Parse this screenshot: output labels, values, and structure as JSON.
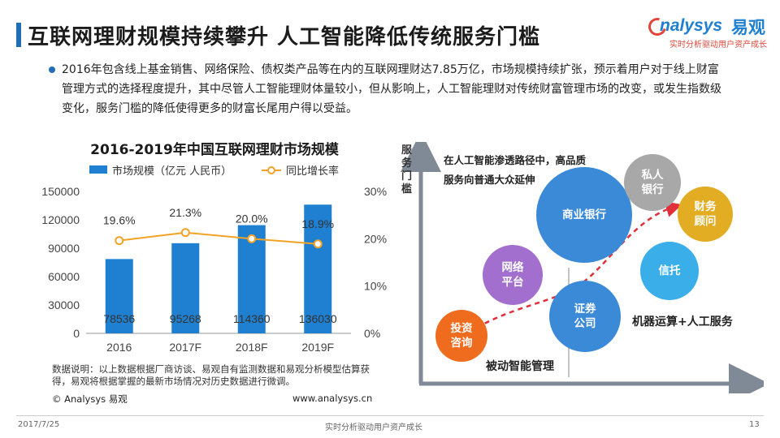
{
  "header": {
    "title": "互联网理财规模持续攀升   人工智能降低传统服务门槛",
    "logo_en": "nalysys",
    "logo_cn": "易观",
    "logo_sub": "实时分析驱动用户资产成长"
  },
  "intro": {
    "paragraph": "2016年包含线上基金销售、网络保险、债权类产品等在内的互联网理财达7.85万亿，市场规模持续扩张，预示着用户对于线上财富管理方式的选择程度提升，其中尽管人工智能理财体量较小，但从影响上，人工智能理财对传统财富管理市场的改变，或发生指数级变化，服务门槛的降低使得更多的财富长尾用户得以受益。"
  },
  "chart_data": {
    "type": "bar",
    "title": "2016-2019年中国互联网理财市场规模",
    "categories": [
      "2016",
      "2017F",
      "2018F",
      "2019F"
    ],
    "series": [
      {
        "name": "市场规模（亿元 人民币）",
        "type": "bar",
        "axis": "left",
        "values": [
          78536,
          95268,
          114360,
          136030
        ],
        "color": "#1f7fd0"
      },
      {
        "name": "同比增长率",
        "type": "line",
        "axis": "right",
        "values": [
          19.6,
          21.3,
          20.0,
          18.9
        ],
        "labels": [
          "19.6%",
          "21.3%",
          "20.0%",
          "18.9%"
        ],
        "color": "#f2a327"
      }
    ],
    "y_left": {
      "min": 0,
      "max": 150000,
      "ticks": [
        "0",
        "30000",
        "60000",
        "90000",
        "120000",
        "150000"
      ]
    },
    "y_right": {
      "min": 0,
      "max": 30,
      "ticks": [
        "0%",
        "10%",
        "20%",
        "30%"
      ]
    },
    "grid": false,
    "legend": "top"
  },
  "chart_footer": {
    "note": "数据说明：以上数据根据厂商访谈、易观自有监测数据和易观分析模型估算获得，易观将根据掌握的最新市场情况对历史数据进行微调。",
    "copyright": "© Analysys 易观",
    "site": "www.analysys.cn"
  },
  "diagram": {
    "y_axis_label": "服务门槛",
    "path_note_1": "在人工智能渗透路径中，高品质",
    "path_note_2": "服务向普通大众延伸",
    "bubbles": [
      {
        "label": "商业银行",
        "color": "#3a8ad8"
      },
      {
        "label": "私人\n银行",
        "color": "#a8a8a8"
      },
      {
        "label": "财务\n顾问",
        "color": "#e2ad22"
      },
      {
        "label": "网络\n平台",
        "color": "#a36fce"
      },
      {
        "label": "信托",
        "color": "#3aaee8"
      },
      {
        "label": "证券\n公司",
        "color": "#3a8ad8"
      },
      {
        "label": "投资\n咨询",
        "color": "#ef6c1e"
      }
    ],
    "machine_label": "机器运算+人工服务",
    "passive_label": "被动智能管理"
  },
  "footer": {
    "date": "2017/7/25",
    "center": "实时分析驱动用户资产成长",
    "page": "13"
  }
}
